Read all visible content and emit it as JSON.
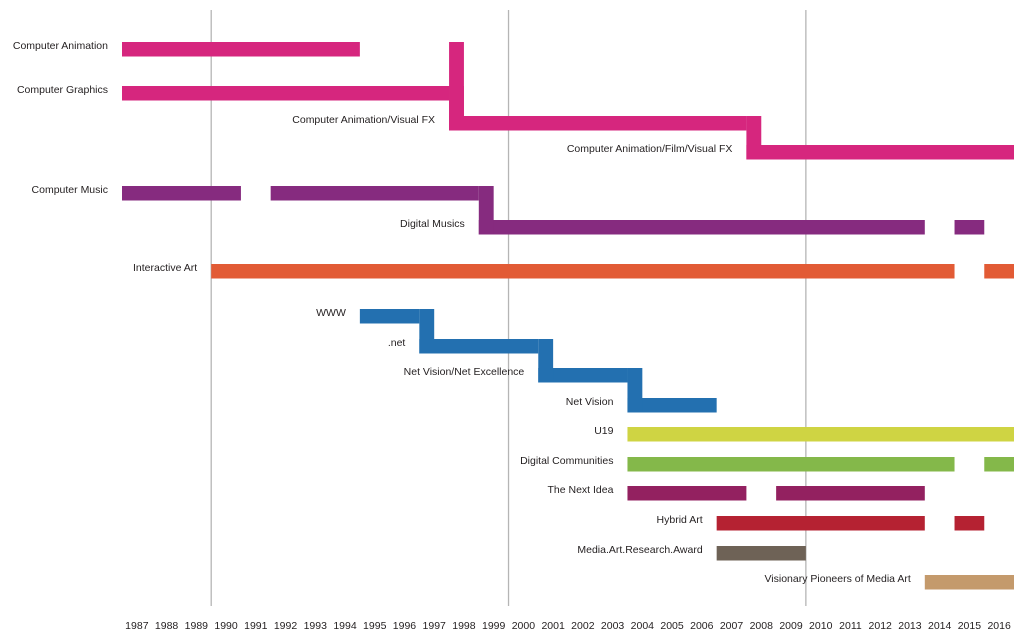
{
  "chart_data": {
    "type": "timeline",
    "title": "",
    "xlabel": "",
    "ylabel": "",
    "xlim": [
      1987,
      2016
    ],
    "grid_years": [
      1990,
      2000,
      2010
    ],
    "x_tick_labels": [
      "1987",
      "1988",
      "1989",
      "1990",
      "1991",
      "1992",
      "1993",
      "1994",
      "1995",
      "1996",
      "1997",
      "1998",
      "1999",
      "2000",
      "2001",
      "2002",
      "2003",
      "2004",
      "2005",
      "2006",
      "2007",
      "2008",
      "2009",
      "2010",
      "2011",
      "2012",
      "2013",
      "2014",
      "2015",
      "2016"
    ],
    "series": [
      {
        "name": "Computer Animation",
        "color": "#d6267e",
        "segments": [
          [
            1987,
            1994
          ]
        ]
      },
      {
        "name": "Computer Graphics",
        "color": "#d6267e",
        "segments": [
          [
            1987,
            1997
          ]
        ]
      },
      {
        "name": "Computer Animation/Visual FX",
        "color": "#d6267e",
        "segments": [
          [
            1998,
            2007
          ]
        ]
      },
      {
        "name": "Computer Animation/Film/Visual FX",
        "color": "#d6267e",
        "segments": [
          [
            2008,
            2016
          ]
        ]
      },
      {
        "name": "Computer Music",
        "color": "#862b7f",
        "segments": [
          [
            1987,
            1990
          ],
          [
            1992,
            1998
          ]
        ]
      },
      {
        "name": "Digital Musics",
        "color": "#862b7f",
        "segments": [
          [
            1999,
            2013
          ],
          [
            2015,
            2015
          ]
        ]
      },
      {
        "name": "Interactive Art",
        "color": "#e25b35",
        "segments": [
          [
            1990,
            2014
          ],
          [
            2016,
            2016
          ]
        ]
      },
      {
        "name": "WWW",
        "color": "#2370b0",
        "segments": [
          [
            1995,
            1996
          ]
        ]
      },
      {
        "name": ".net",
        "color": "#2370b0",
        "segments": [
          [
            1997,
            2000
          ]
        ]
      },
      {
        "name": "Net Vision/Net Excellence",
        "color": "#2370b0",
        "segments": [
          [
            2001,
            2003
          ]
        ]
      },
      {
        "name": "Net Vision",
        "color": "#2370b0",
        "segments": [
          [
            2004,
            2006
          ]
        ]
      },
      {
        "name": "U19",
        "color": "#cfd443",
        "segments": [
          [
            2004,
            2016
          ]
        ]
      },
      {
        "name": "Digital Communities",
        "color": "#84b84a",
        "segments": [
          [
            2004,
            2014
          ],
          [
            2016,
            2016
          ]
        ]
      },
      {
        "name": "The Next Idea",
        "color": "#932160",
        "segments": [
          [
            2004,
            2007
          ],
          [
            2009,
            2013
          ]
        ]
      },
      {
        "name": "Hybrid Art",
        "color": "#b52232",
        "segments": [
          [
            2007,
            2013
          ],
          [
            2015,
            2015
          ]
        ]
      },
      {
        "name": "Media.Art.Research.Award",
        "color": "#6e6256",
        "segments": [
          [
            2007,
            2009
          ]
        ]
      },
      {
        "name": "Visionary Pioneers of Media Art",
        "color": "#c49a6c",
        "segments": [
          [
            2014,
            2016
          ]
        ]
      }
    ],
    "connectors": [
      {
        "from": "Computer Animation",
        "to": "Computer Animation/Visual FX",
        "year": 1998
      },
      {
        "from": "Computer Graphics",
        "to": "Computer Animation/Visual FX",
        "year": 1998
      },
      {
        "from": "Computer Animation/Visual FX",
        "to": "Computer Animation/Film/Visual FX",
        "year": 2008
      },
      {
        "from": "Computer Music",
        "to": "Digital Musics",
        "year": 1999
      },
      {
        "from": "WWW",
        "to": ".net",
        "year": 1997
      },
      {
        "from": ".net",
        "to": "Net Vision/Net Excellence",
        "year": 2001
      },
      {
        "from": "Net Vision/Net Excellence",
        "to": "Net Vision",
        "year": 2004
      }
    ]
  }
}
